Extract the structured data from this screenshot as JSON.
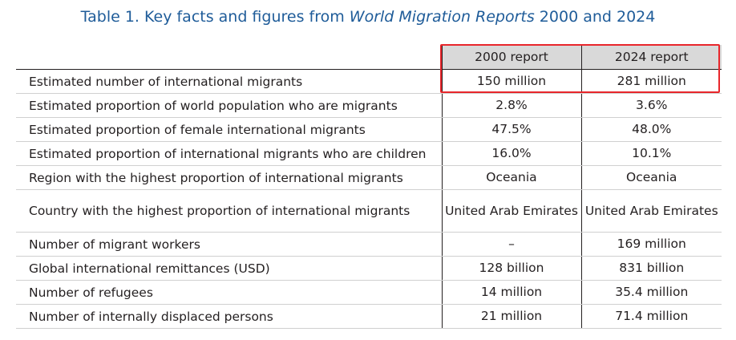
{
  "title": {
    "prefix": "Table 1. Key facts and figures from ",
    "italic": "World Migration Reports",
    "suffix": " 2000 and 2024"
  },
  "table": {
    "headers": [
      "",
      "2000 report",
      "2024 report"
    ],
    "rows": [
      {
        "label": "Estimated number of international migrants",
        "v2000": "150 million",
        "v2024": "281 million"
      },
      {
        "label": "Estimated proportion of world population who are migrants",
        "v2000": "2.8%",
        "v2024": "3.6%"
      },
      {
        "label": "Estimated proportion of female international migrants",
        "v2000": "47.5%",
        "v2024": "48.0%"
      },
      {
        "label": "Estimated proportion of international migrants who are children",
        "v2000": "16.0%",
        "v2024": "10.1%"
      },
      {
        "label": "Region with the highest proportion of international migrants",
        "v2000": "Oceania",
        "v2024": "Oceania"
      },
      {
        "label": "Country with the highest proportion of international migrants",
        "v2000": "United Arab Emirates",
        "v2024": "United Arab Emirates"
      },
      {
        "label": "Number of migrant workers",
        "v2000": "–",
        "v2024": "169 million"
      },
      {
        "label": "Global international remittances (USD)",
        "v2000": "128 billion",
        "v2024": "831 billion"
      },
      {
        "label": "Number of refugees",
        "v2000": "14 million",
        "v2024": "35.4 million"
      },
      {
        "label": "Number of internally displaced persons",
        "v2000": "21 million",
        "v2024": "71.4 million"
      }
    ]
  },
  "highlight": {
    "color": "#e8262b"
  }
}
